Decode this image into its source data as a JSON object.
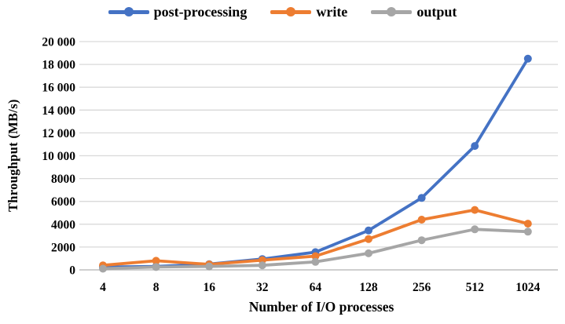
{
  "chart_data": {
    "type": "line",
    "title": "",
    "xlabel": "Number of I/O processes",
    "ylabel": "Throughput  (MB/s)",
    "categories": [
      "4",
      "8",
      "16",
      "32",
      "64",
      "128",
      "256",
      "512",
      "1024"
    ],
    "series": [
      {
        "name": "post-processing",
        "color": "#4472C4",
        "values": [
          250,
          300,
          500,
          950,
          1550,
          3450,
          6300,
          10850,
          18500
        ]
      },
      {
        "name": "write",
        "color": "#ED7D31",
        "values": [
          400,
          800,
          480,
          850,
          1200,
          2700,
          4400,
          5250,
          4050
        ]
      },
      {
        "name": "output",
        "color": "#A6A6A6",
        "values": [
          100,
          250,
          300,
          400,
          700,
          1450,
          2600,
          3550,
          3350
        ]
      }
    ],
    "ylim": [
      0,
      20000
    ],
    "ytick_step": 2000,
    "ytick_labels": [
      "0",
      "2000",
      "4000",
      "6000",
      "8000",
      "10 000",
      "12 000",
      "14 000",
      "16 000",
      "18 000",
      "20 000"
    ],
    "grid": "on",
    "grid_color": "#D9D9D9",
    "axis_color": "#BFBFBF",
    "legend_position": "top-center",
    "marker": "circle"
  }
}
